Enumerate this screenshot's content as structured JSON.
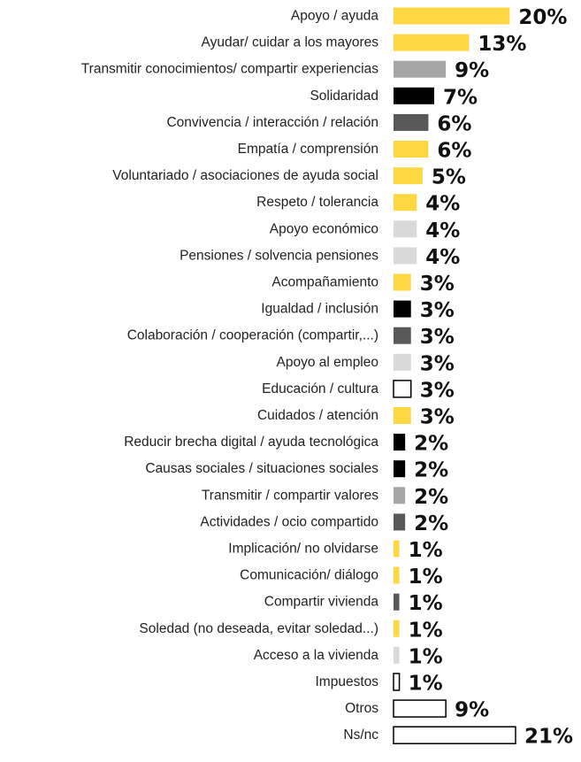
{
  "chart_data": {
    "type": "bar",
    "orientation": "horizontal",
    "title": "",
    "xlabel": "",
    "ylabel": "",
    "xlim": [
      0,
      21
    ],
    "grid": false,
    "legend": "none",
    "value_suffix": "%",
    "categories": [
      "Apoyo / ayuda",
      "Ayudar/ cuidar a los mayores",
      "Transmitir conocimientos/ compartir experiencias",
      "Solidaridad",
      "Convivencia / interacción / relación",
      "Empatía / comprensión",
      "Voluntariado / asociaciones de ayuda social",
      "Respeto / tolerancia",
      "Apoyo económico",
      "Pensiones / solvencia pensiones",
      "Acompañamiento",
      "Igualdad / inclusión",
      "Colaboración / cooperación (compartir,...)",
      "Apoyo al empleo",
      "Educación / cultura",
      "Cuidados / atención",
      "Reducir brecha digital / ayuda tecnológica",
      "Causas sociales / situaciones sociales",
      "Transmitir / compartir valores",
      "Actividades / ocio compartido",
      "Implicación/ no olvidarse",
      "Comunicación/ diálogo",
      "Compartir vivienda",
      "Soledad (no deseada, evitar soledad...)",
      "Acceso a la vivienda",
      "Impuestos",
      "Otros",
      "Ns/nc"
    ],
    "values": [
      20,
      13,
      9,
      7,
      6,
      6,
      5,
      4,
      4,
      4,
      3,
      3,
      3,
      3,
      3,
      3,
      2,
      2,
      2,
      2,
      1,
      1,
      1,
      1,
      1,
      1,
      9,
      21
    ],
    "display_values": [
      20,
      13,
      9,
      7,
      6,
      6,
      5,
      4,
      4,
      4,
      3,
      3,
      3,
      3,
      3,
      3,
      2,
      2,
      2,
      2,
      1,
      1,
      1,
      1,
      1,
      1,
      9,
      21
    ],
    "bar_fills": [
      "#FFD740",
      "#FFD740",
      "#A6A6A6",
      "#000000",
      "#595959",
      "#FFD740",
      "#FFD740",
      "#FFD740",
      "#D9D9D9",
      "#D9D9D9",
      "#FFD740",
      "#000000",
      "#595959",
      "#D9D9D9",
      "#FFFFFF",
      "#FFD740",
      "#000000",
      "#000000",
      "#A6A6A6",
      "#595959",
      "#FFD740",
      "#FFD740",
      "#595959",
      "#FFD740",
      "#D9D9D9",
      "#FFFFFF",
      "#FFFFFF",
      "#FFFFFF"
    ],
    "bar_strokes": [
      "none",
      "none",
      "none",
      "none",
      "none",
      "none",
      "none",
      "none",
      "none",
      "none",
      "none",
      "none",
      "none",
      "none",
      "#000000",
      "none",
      "none",
      "none",
      "none",
      "none",
      "none",
      "none",
      "none",
      "none",
      "none",
      "#000000",
      "#000000",
      "#000000"
    ]
  }
}
